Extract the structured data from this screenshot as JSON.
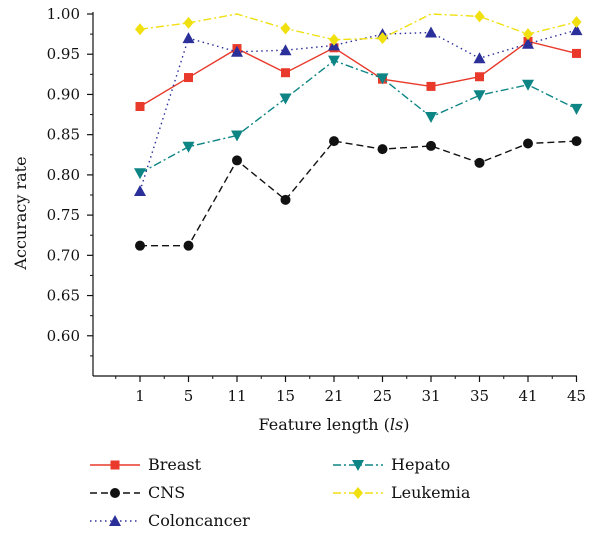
{
  "chart_data": {
    "type": "line",
    "title": "",
    "xlabel_prefix": "Feature length (",
    "xlabel_italic": "ls",
    "xlabel_suffix": ")",
    "ylabel": "Accuracy rate",
    "x": [
      "1",
      "5",
      "11",
      "15",
      "21",
      "25",
      "31",
      "35",
      "41",
      "45"
    ],
    "ylim": [
      0.55,
      1.0
    ],
    "yticks": [
      "0.60",
      "0.65",
      "0.70",
      "0.75",
      "0.80",
      "0.85",
      "0.90",
      "0.95",
      "1.00"
    ],
    "grid": false,
    "legend_position": "bottom",
    "series": [
      {
        "name": "Breast",
        "color": "#e8392a",
        "marker": "square",
        "dash": "solid",
        "values": [
          0.885,
          0.921,
          0.957,
          0.927,
          0.958,
          0.919,
          0.91,
          0.922,
          0.966,
          0.951
        ]
      },
      {
        "name": "CNS",
        "color": "#111111",
        "marker": "circle",
        "dash": "dashed",
        "values": [
          0.712,
          0.712,
          0.818,
          0.769,
          0.842,
          0.832,
          0.836,
          0.815,
          0.839,
          0.842
        ]
      },
      {
        "name": "Coloncancer",
        "color": "#2b2f9a",
        "marker": "triangle-up",
        "dash": "dotted",
        "values": [
          0.78,
          0.97,
          0.953,
          0.955,
          0.961,
          0.975,
          0.977,
          0.945,
          0.963,
          0.98
        ]
      },
      {
        "name": "Hepato",
        "color": "#0e8585",
        "marker": "triangle-down",
        "dash": "dashdot",
        "values": [
          0.802,
          0.835,
          0.849,
          0.895,
          0.942,
          0.92,
          0.872,
          0.899,
          0.912,
          0.882
        ]
      },
      {
        "name": "Leukemia",
        "color": "#f0e010",
        "marker": "diamond",
        "dash": "dashdot",
        "values": [
          0.981,
          0.989,
          1.0,
          0.982,
          0.968,
          0.97,
          1.0,
          0.997,
          0.975,
          0.99
        ]
      }
    ]
  }
}
